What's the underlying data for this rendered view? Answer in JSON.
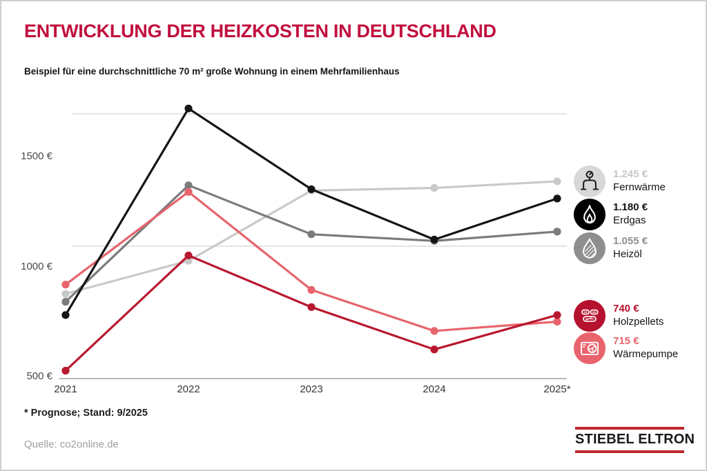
{
  "chart_data": {
    "type": "line",
    "title": "ENTWICKLUNG DER HEIZKOSTEN IN DEUTSCHLAND",
    "subtitle": "Beispiel für eine durchschnittliche 70 m² große Wohnung in einem Mehrfamilienhaus",
    "categories": [
      "2021",
      "2022",
      "2023",
      "2024",
      "2025*"
    ],
    "series": [
      {
        "name": "Fernwärme",
        "color": "#c9c9c9",
        "values": [
          820,
          945,
          1210,
          1220,
          1245
        ]
      },
      {
        "name": "Erdgas",
        "color": "#141414",
        "values": [
          740,
          1520,
          1215,
          1025,
          1180
        ]
      },
      {
        "name": "Heizöl",
        "color": "#7b7b7b",
        "values": [
          790,
          1230,
          1045,
          1020,
          1055
        ]
      },
      {
        "name": "Holzpellets",
        "color": "#b8182f",
        "values": [
          530,
          965,
          770,
          610,
          740
        ]
      },
      {
        "name": "Wärmepumpe",
        "color": "#e8636c",
        "values": [
          855,
          1205,
          835,
          680,
          715
        ]
      }
    ],
    "unit": "€",
    "ylim": [
      500,
      1560
    ],
    "grid_values": [
      1500,
      1000,
      500
    ],
    "y_tick_labels": [
      "1500 €",
      "1000 €",
      "500 €"
    ],
    "legend_position": "right",
    "grid": "horizontal"
  },
  "legend": {
    "items": [
      {
        "key": "fernwaerme",
        "value": "1.245 €",
        "name": "Fernwärme",
        "circle_color": "#d8d8d8",
        "value_color": "#c6c6c6"
      },
      {
        "key": "erdgas",
        "value": "1.180 €",
        "name": "Erdgas",
        "circle_color": "#000000",
        "value_color": "#141414"
      },
      {
        "key": "heizoel",
        "value": "1.055 €",
        "name": "Heizöl",
        "circle_color": "#8e8e8e",
        "value_color": "#8e8e8e"
      },
      {
        "key": "holzpellets",
        "value": "740 €",
        "name": "Holzpellets",
        "circle_color": "#b5122f",
        "value_color": "#b5122f"
      },
      {
        "key": "waermepumpe",
        "value": "715 €",
        "name": "Wärmepumpe",
        "circle_color": "#e8636c",
        "value_color": "#e8636c"
      }
    ]
  },
  "footnote": "* Prognose; Stand: 9/2025",
  "source": "Quelle: co2online.de",
  "logo": {
    "text": "STIEBEL ELTRON"
  }
}
